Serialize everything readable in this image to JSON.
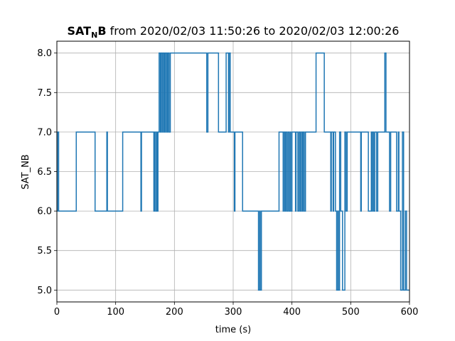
{
  "chart_data": {
    "type": "line",
    "step": "post",
    "title_main": "SAT",
    "title_sub": "N",
    "title_main2": "B",
    "title_rest": " from 2020/02/03 11:50:26 to 2020/02/03 12:00:26",
    "xlabel": "time (s)",
    "ylabel": "SAT_NB",
    "xlim": [
      0,
      600
    ],
    "ylim": [
      4.85,
      8.15
    ],
    "xticks": [
      0,
      100,
      200,
      300,
      400,
      500,
      600
    ],
    "yticks": [
      5.0,
      5.5,
      6.0,
      6.5,
      7.0,
      7.5,
      8.0
    ],
    "xtick_labels": [
      "0",
      "100",
      "200",
      "300",
      "400",
      "500",
      "600"
    ],
    "ytick_labels": [
      "5.0",
      "5.5",
      "6.0",
      "6.5",
      "7.0",
      "7.5",
      "8.0"
    ],
    "grid": true,
    "line_color": "#1f77b4",
    "series": [
      {
        "points": [
          [
            0,
            6
          ],
          [
            1,
            7
          ],
          [
            3,
            6
          ],
          [
            33,
            7
          ],
          [
            65,
            6
          ],
          [
            85,
            7
          ],
          [
            86,
            6
          ],
          [
            112,
            7
          ],
          [
            143,
            6
          ],
          [
            144,
            7
          ],
          [
            165,
            6
          ],
          [
            166,
            7
          ],
          [
            168,
            6
          ],
          [
            170,
            7
          ],
          [
            171,
            6
          ],
          [
            172,
            7
          ],
          [
            174,
            8
          ],
          [
            176,
            7
          ],
          [
            177,
            8
          ],
          [
            179,
            7
          ],
          [
            180,
            8
          ],
          [
            182,
            7
          ],
          [
            183,
            8
          ],
          [
            185,
            7
          ],
          [
            186,
            8
          ],
          [
            188,
            7
          ],
          [
            189,
            8
          ],
          [
            191,
            7
          ],
          [
            193,
            8
          ],
          [
            255,
            7
          ],
          [
            257,
            8
          ],
          [
            275,
            7
          ],
          [
            288,
            8
          ],
          [
            292,
            7
          ],
          [
            293,
            8
          ],
          [
            295,
            7
          ],
          [
            302,
            6
          ],
          [
            303,
            7
          ],
          [
            316,
            6
          ],
          [
            343,
            5
          ],
          [
            345,
            6
          ],
          [
            346,
            5
          ],
          [
            348,
            6
          ],
          [
            378,
            7
          ],
          [
            385,
            6
          ],
          [
            386,
            7
          ],
          [
            388,
            6
          ],
          [
            389,
            7
          ],
          [
            391,
            6
          ],
          [
            393,
            7
          ],
          [
            395,
            6
          ],
          [
            397,
            7
          ],
          [
            398,
            6
          ],
          [
            400,
            7
          ],
          [
            406,
            6
          ],
          [
            407,
            7
          ],
          [
            410,
            6
          ],
          [
            412,
            7
          ],
          [
            414,
            6
          ],
          [
            416,
            7
          ],
          [
            418,
            6
          ],
          [
            419,
            7
          ],
          [
            421,
            6
          ],
          [
            423,
            7
          ],
          [
            441,
            8
          ],
          [
            455,
            7
          ],
          [
            466,
            6
          ],
          [
            467,
            7
          ],
          [
            470,
            6
          ],
          [
            471,
            7
          ],
          [
            474,
            6
          ],
          [
            476,
            5
          ],
          [
            478,
            6
          ],
          [
            479,
            5
          ],
          [
            481,
            7
          ],
          [
            483,
            6
          ],
          [
            486,
            5
          ],
          [
            490,
            7
          ],
          [
            492,
            6
          ],
          [
            494,
            7
          ],
          [
            517,
            6
          ],
          [
            518,
            7
          ],
          [
            530,
            6
          ],
          [
            535,
            7
          ],
          [
            536,
            6
          ],
          [
            537,
            7
          ],
          [
            539,
            6
          ],
          [
            541,
            7
          ],
          [
            544,
            6
          ],
          [
            546,
            7
          ],
          [
            558,
            8
          ],
          [
            560,
            7
          ],
          [
            566,
            6
          ],
          [
            568,
            7
          ],
          [
            578,
            6
          ],
          [
            581,
            7
          ],
          [
            582,
            6
          ],
          [
            585,
            5
          ],
          [
            588,
            7
          ],
          [
            590,
            5
          ],
          [
            593,
            6
          ],
          [
            595,
            5
          ],
          [
            600,
            5
          ]
        ]
      }
    ]
  }
}
